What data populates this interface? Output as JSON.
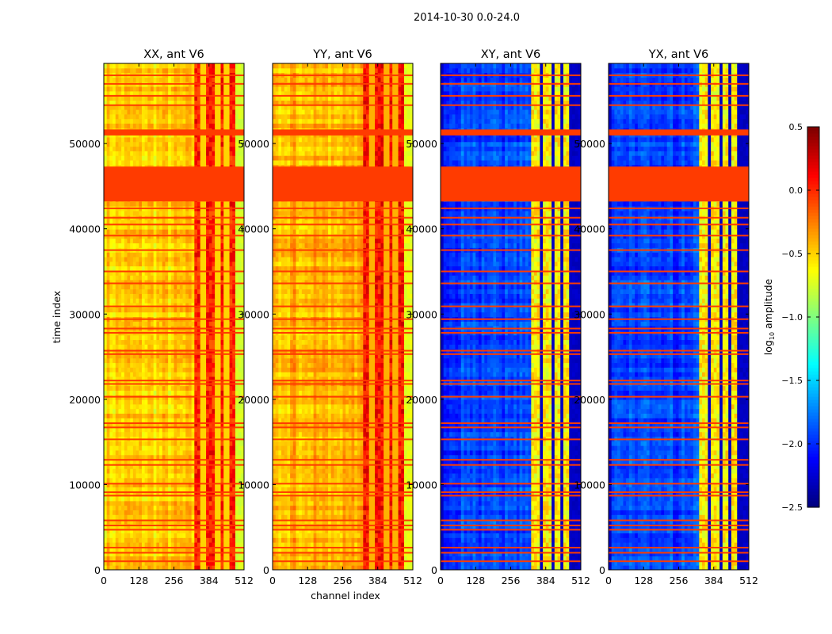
{
  "chart_data": {
    "type": "heatmap",
    "title": "2014-10-30 0.0-24.0",
    "xlabel": "channel index",
    "ylabel": "time index",
    "xlim": [
      0,
      512
    ],
    "ylim": [
      0,
      59400
    ],
    "xticks": [
      "0",
      "128",
      "256",
      "384",
      "512"
    ],
    "xtick_values": [
      0,
      128,
      256,
      384,
      512
    ],
    "yticks": [
      "0",
      "10000",
      "20000",
      "30000",
      "40000",
      "50000"
    ],
    "ytick_values": [
      0,
      10000,
      20000,
      30000,
      40000,
      50000
    ],
    "colorbar": {
      "label": "log10 amplitude",
      "label_main": "log",
      "label_sub": "10",
      "label_rest": " amplitude",
      "range": [
        -2.5,
        0.5
      ],
      "ticks": [
        "0.5",
        "0.0",
        "−0.5",
        "−1.0",
        "−1.5",
        "−2.0",
        "−2.5"
      ],
      "tick_values": [
        0.5,
        0.0,
        -0.5,
        -1.0,
        -1.5,
        -2.0,
        -2.5
      ],
      "colormap": "jet"
    },
    "flag_value": -0.05,
    "flagged_time_ranges": [
      [
        43200,
        47300
      ],
      [
        50950,
        51650
      ]
    ],
    "flagged_time_lines": [
      1000,
      2000,
      2600,
      4700,
      5200,
      5800,
      8700,
      9100,
      10100,
      12300,
      12900,
      15300,
      16700,
      17200,
      20300,
      21800,
      22200,
      25300,
      25700,
      27800,
      28300,
      29400,
      30900,
      33600,
      35000,
      37500,
      39200,
      40500,
      41300,
      42400,
      54500,
      55600,
      57000,
      58000
    ],
    "rfi_channel_range": [
      330,
      480
    ],
    "panels": [
      {
        "title": "XX, ant V6",
        "base_level": -0.5,
        "rfi_level": 0.05,
        "edge_level": -0.75,
        "gap_channels": [
          362,
          415,
          448
        ]
      },
      {
        "title": "YY, ant V6",
        "base_level": -0.4,
        "rfi_level": 0.1,
        "edge_level": -0.7,
        "gap_channels": [
          362,
          415,
          448
        ]
      },
      {
        "title": "XY, ant V6",
        "base_level": -1.95,
        "rfi_level": -0.6,
        "edge_level": -2.3,
        "gap_channels": [
          365,
          408,
          440,
          472
        ]
      },
      {
        "title": "YX, ant V6",
        "base_level": -1.95,
        "rfi_level": -0.6,
        "edge_level": -2.3,
        "gap_channels": [
          365,
          408,
          440,
          472
        ]
      }
    ]
  }
}
